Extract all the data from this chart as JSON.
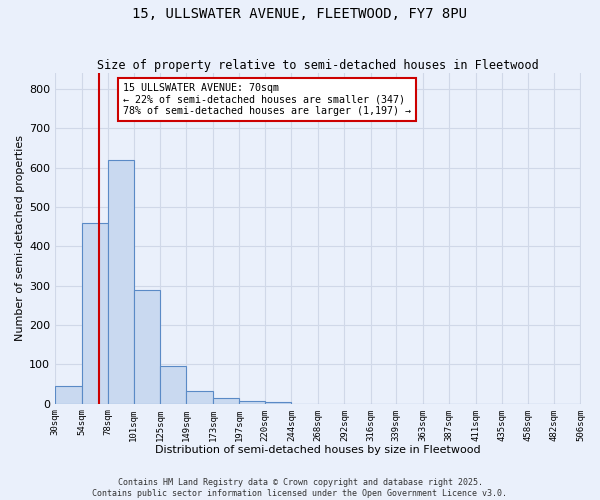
{
  "title1": "15, ULLSWATER AVENUE, FLEETWOOD, FY7 8PU",
  "title2": "Size of property relative to semi-detached houses in Fleetwood",
  "xlabel": "Distribution of semi-detached houses by size in Fleetwood",
  "ylabel": "Number of semi-detached properties",
  "bin_edges": [
    30,
    54,
    78,
    101,
    125,
    149,
    173,
    197,
    220,
    244,
    268,
    292,
    316,
    339,
    363,
    387,
    411,
    435,
    458,
    482,
    506
  ],
  "bar_heights": [
    45,
    460,
    620,
    290,
    95,
    33,
    14,
    7,
    5,
    0,
    0,
    0,
    0,
    0,
    0,
    0,
    0,
    0,
    0,
    0
  ],
  "bar_color": "#c9d9f0",
  "bar_edge_color": "#5a8ac6",
  "property_size": 70,
  "property_label": "15 ULLSWATER AVENUE: 70sqm",
  "smaller_pct": "22%",
  "smaller_count": 347,
  "larger_pct": "78%",
  "larger_count": "1,197",
  "vline_color": "#cc0000",
  "annotation_box_color": "#cc0000",
  "background_color": "#eaf0fb",
  "grid_color": "#d0d8e8",
  "footer1": "Contains HM Land Registry data © Crown copyright and database right 2025.",
  "footer2": "Contains public sector information licensed under the Open Government Licence v3.0.",
  "ylim": [
    0,
    840
  ]
}
